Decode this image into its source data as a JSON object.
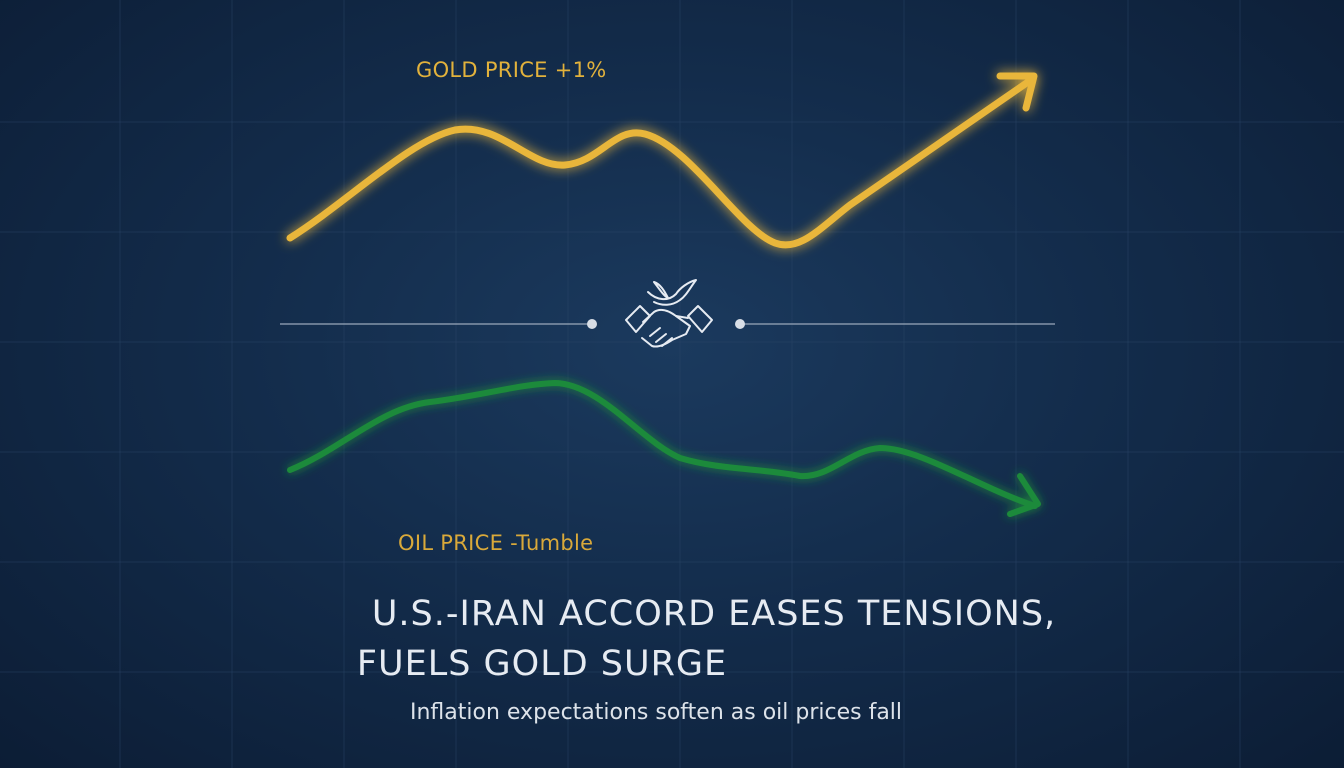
{
  "gold": {
    "label": "GOLD PRICE +1%",
    "color": "#e9b63a"
  },
  "oil": {
    "label": "OIL PRICE -Tumble",
    "color": "#1f8a3a"
  },
  "center_icon": "handshake-with-dove-icon",
  "headline": {
    "line1": "U.S.-IRAN ACCORD EASES TENSIONS,",
    "line2": "FUELS GOLD SURGE"
  },
  "subtitle": "Inflation expectations soften as oil prices fall",
  "colors": {
    "background": "#132c4b",
    "grid": "#2b4668",
    "headline_text": "#e6ebf2",
    "label_text": "#e2b23c"
  }
}
